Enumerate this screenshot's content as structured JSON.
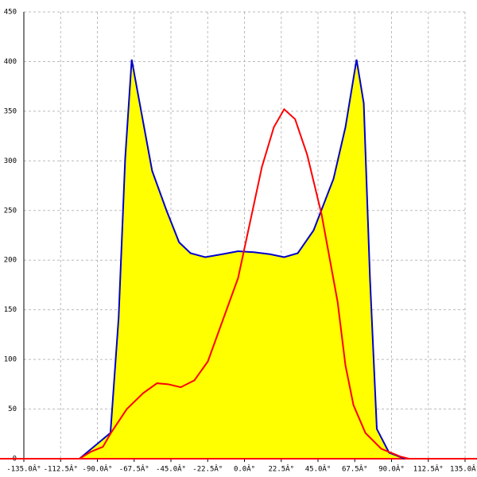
{
  "chart_data": {
    "type": "line",
    "xlim": [
      -135,
      135
    ],
    "ylim": [
      0,
      450
    ],
    "grid": true,
    "xticks": [
      {
        "value": -135,
        "label": "-135.0Â°"
      },
      {
        "value": -112.5,
        "label": "-112.5Â°"
      },
      {
        "value": -90,
        "label": "-90.0Â°"
      },
      {
        "value": -67.5,
        "label": "-67.5Â°"
      },
      {
        "value": -45,
        "label": "-45.0Â°"
      },
      {
        "value": -22.5,
        "label": "-22.5Â°"
      },
      {
        "value": 0,
        "label": "0.0Â°"
      },
      {
        "value": 22.5,
        "label": "22.5Â°"
      },
      {
        "value": 45,
        "label": "45.0Â°"
      },
      {
        "value": 67.5,
        "label": "67.5Â°"
      },
      {
        "value": 90,
        "label": "90.0Â°"
      },
      {
        "value": 112.5,
        "label": "112.5Â°"
      },
      {
        "value": 135,
        "label": "135.0Â°"
      }
    ],
    "yticks": [
      0,
      50,
      100,
      150,
      200,
      250,
      300,
      350,
      400,
      450
    ],
    "series": [
      {
        "color": "#0000cc",
        "fill": "#ffff00",
        "x": [
          -101,
          -82,
          -77,
          -73,
          -69,
          -65,
          -56.5,
          -47.7,
          -40,
          -33,
          -24,
          -13.6,
          -3.9,
          5.8,
          15.6,
          24.3,
          32.6,
          42.3,
          54.5,
          61.8,
          68.6,
          73,
          76.8,
          81,
          88.5,
          98
        ],
        "values": [
          0,
          26,
          142,
          302,
          402,
          366,
          290,
          250,
          218,
          207,
          203,
          206,
          209,
          208,
          206,
          203,
          207,
          230,
          282,
          334,
          402,
          358,
          182,
          30,
          6,
          0
        ]
      },
      {
        "color": "#ff0000",
        "x": [
          -101,
          -94,
          -86.6,
          -81.7,
          -72,
          -62,
          -53.5,
          -46.7,
          -39,
          -30.6,
          -22.4,
          -13.6,
          -3.9,
          3.4,
          10.7,
          18,
          24.3,
          31,
          38.4,
          47.2,
          57,
          61.8,
          66.7,
          74,
          83.7,
          95.8,
          100.7
        ],
        "values": [
          0,
          7,
          12,
          26,
          50,
          66,
          76,
          75,
          72,
          79,
          98,
          138,
          182,
          238,
          294,
          334,
          352,
          342,
          306,
          246,
          158,
          94,
          54,
          26,
          10,
          2,
          0
        ]
      }
    ]
  }
}
